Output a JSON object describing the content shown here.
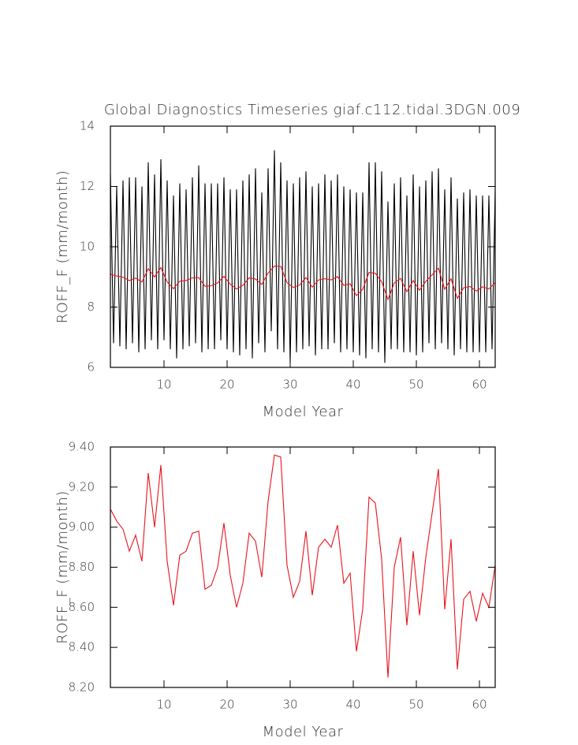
{
  "chart_data": [
    {
      "type": "line",
      "title": "Global Diagnostics Timeseries giaf.c112.tidal.3DGN.009",
      "xlabel": "Model Year",
      "ylabel": "ROFF_F (mm/month)",
      "xlim": [
        1.5,
        62.5
      ],
      "ylim": [
        6,
        14
      ],
      "xticks": [
        10,
        20,
        30,
        40,
        50,
        60
      ],
      "yticks": [
        6,
        8,
        10,
        12,
        14
      ],
      "series": [
        {
          "color": "#000000",
          "x": [
            1.5,
            2,
            2.5,
            3,
            3.5,
            4,
            4.5,
            5,
            5.5,
            6,
            6.5,
            7,
            7.5,
            8,
            8.5,
            9,
            9.5,
            10,
            10.5,
            11,
            11.5,
            12,
            12.5,
            13,
            13.5,
            14,
            14.5,
            15,
            15.5,
            16,
            16.5,
            17,
            17.5,
            18,
            18.5,
            19,
            19.5,
            20,
            20.5,
            21,
            21.5,
            22,
            22.5,
            23,
            23.5,
            24,
            24.5,
            25,
            25.5,
            26,
            26.5,
            27,
            27.5,
            28,
            28.5,
            29,
            29.5,
            30,
            30.5,
            31,
            31.5,
            32,
            32.5,
            33,
            33.5,
            34,
            34.5,
            35,
            35.5,
            36,
            36.5,
            37,
            37.5,
            38,
            38.5,
            39,
            39.5,
            40,
            40.5,
            41,
            41.5,
            42,
            42.5,
            43,
            43.5,
            44,
            44.5,
            45,
            45.5,
            46,
            46.5,
            47,
            47.5,
            48,
            48.5,
            49,
            49.5,
            50,
            50.5,
            51,
            51.5,
            52,
            52.5,
            53,
            53.5,
            54,
            54.5,
            55,
            55.5,
            56,
            56.5,
            57,
            57.5,
            58,
            58.5,
            59,
            59.5,
            60,
            60.5,
            61,
            61.5,
            62,
            62.5
          ],
          "values": [
            12.4,
            6.8,
            12.0,
            6.7,
            12.2,
            6.6,
            12.3,
            6.8,
            12.3,
            6.5,
            12.0,
            6.6,
            12.8,
            6.9,
            12.4,
            6.6,
            12.9,
            6.9,
            12.2,
            6.6,
            11.7,
            6.3,
            12.1,
            6.6,
            11.9,
            6.7,
            12.3,
            6.8,
            12.7,
            6.5,
            12.1,
            6.6,
            12.1,
            6.6,
            12.1,
            6.9,
            12.3,
            6.6,
            11.9,
            6.5,
            11.9,
            6.4,
            12.2,
            6.6,
            12.4,
            6.3,
            12.6,
            6.8,
            11.8,
            6.5,
            12.6,
            7.2,
            13.2,
            6.6,
            12.8,
            6.5,
            12.2,
            6.15,
            12.1,
            6.5,
            12.3,
            6.6,
            12.5,
            6.7,
            12.0,
            6.4,
            12.1,
            6.6,
            12.4,
            6.6,
            12.2,
            6.8,
            12.4,
            6.5,
            12.0,
            6.6,
            11.9,
            6.5,
            11.8,
            6.4,
            11.8,
            6.3,
            12.8,
            6.6,
            12.8,
            6.5,
            12.5,
            6.15,
            11.5,
            6.6,
            12.1,
            6.6,
            12.3,
            6.5,
            11.7,
            6.5,
            12.4,
            6.4,
            12.0,
            6.5,
            12.2,
            6.8,
            12.5,
            6.6,
            12.6,
            6.8,
            11.9,
            6.6,
            12.3,
            6.4,
            11.6,
            6.6,
            11.8,
            6.5,
            11.9,
            6.5,
            11.7,
            6.5,
            11.7,
            6.5,
            11.7,
            6.6,
            11.9
          ]
        },
        {
          "color": "#e8141c",
          "x": [
            1.5,
            2.5,
            3.5,
            4.5,
            5.5,
            6.5,
            7.5,
            8.5,
            9.5,
            10.5,
            11.5,
            12.5,
            13.5,
            14.5,
            15.5,
            16.5,
            17.5,
            18.5,
            19.5,
            20.5,
            21.5,
            22.5,
            23.5,
            24.5,
            25.5,
            26.5,
            27.5,
            28.5,
            29.5,
            30.5,
            31.5,
            32.5,
            33.5,
            34.5,
            35.5,
            36.5,
            37.5,
            38.5,
            39.5,
            40.5,
            41.5,
            42.5,
            43.5,
            44.5,
            45.5,
            46.5,
            47.5,
            48.5,
            49.5,
            50.5,
            51.5,
            52.5,
            53.5,
            54.5,
            55.5,
            56.5,
            57.5,
            58.5,
            59.5,
            60.5,
            61.5,
            62.5
          ],
          "values": [
            9.09,
            9.03,
            8.99,
            8.88,
            8.96,
            8.83,
            9.27,
            9.0,
            9.31,
            8.83,
            8.61,
            8.86,
            8.88,
            8.97,
            8.98,
            8.69,
            8.71,
            8.8,
            9.02,
            8.76,
            8.6,
            8.72,
            8.97,
            8.93,
            8.75,
            9.13,
            9.36,
            9.35,
            8.81,
            8.65,
            8.73,
            8.98,
            8.66,
            8.9,
            8.94,
            8.9,
            9.01,
            8.72,
            8.77,
            8.38,
            8.59,
            9.15,
            9.12,
            8.84,
            8.25,
            8.8,
            8.95,
            8.51,
            8.88,
            8.56,
            8.85,
            9.07,
            9.29,
            8.59,
            8.94,
            8.29,
            8.64,
            8.68,
            8.53,
            8.67,
            8.6,
            8.81
          ]
        }
      ]
    },
    {
      "type": "line",
      "xlabel": "Model Year",
      "ylabel": "ROFF_F (mm/month)",
      "xlim": [
        1.5,
        62.5
      ],
      "ylim": [
        8.2,
        9.4
      ],
      "xticks": [
        10,
        20,
        30,
        40,
        50,
        60
      ],
      "yticks": [
        {
          "value": 8.2,
          "label": "8.20"
        },
        {
          "value": 8.4,
          "label": "8.40"
        },
        {
          "value": 8.6,
          "label": "8.60"
        },
        {
          "value": 8.8,
          "label": "8.80"
        },
        {
          "value": 9.0,
          "label": "9.00"
        },
        {
          "value": 9.2,
          "label": "9.20"
        },
        {
          "value": 9.4,
          "label": "9.40"
        }
      ],
      "series": [
        {
          "color": "#e8141c",
          "x": [
            1.5,
            2.5,
            3.5,
            4.5,
            5.5,
            6.5,
            7.5,
            8.5,
            9.5,
            10.5,
            11.5,
            12.5,
            13.5,
            14.5,
            15.5,
            16.5,
            17.5,
            18.5,
            19.5,
            20.5,
            21.5,
            22.5,
            23.5,
            24.5,
            25.5,
            26.5,
            27.5,
            28.5,
            29.5,
            30.5,
            31.5,
            32.5,
            33.5,
            34.5,
            35.5,
            36.5,
            37.5,
            38.5,
            39.5,
            40.5,
            41.5,
            42.5,
            43.5,
            44.5,
            45.5,
            46.5,
            47.5,
            48.5,
            49.5,
            50.5,
            51.5,
            52.5,
            53.5,
            54.5,
            55.5,
            56.5,
            57.5,
            58.5,
            59.5,
            60.5,
            61.5,
            62.5
          ],
          "values": [
            9.09,
            9.03,
            8.99,
            8.88,
            8.96,
            8.83,
            9.27,
            9.0,
            9.31,
            8.83,
            8.61,
            8.86,
            8.88,
            8.97,
            8.98,
            8.69,
            8.71,
            8.8,
            9.02,
            8.76,
            8.6,
            8.72,
            8.97,
            8.93,
            8.75,
            9.13,
            9.36,
            9.35,
            8.81,
            8.65,
            8.73,
            8.98,
            8.66,
            8.9,
            8.94,
            8.9,
            9.01,
            8.72,
            8.77,
            8.38,
            8.59,
            9.15,
            9.12,
            8.84,
            8.25,
            8.8,
            8.95,
            8.51,
            8.88,
            8.56,
            8.85,
            9.07,
            9.29,
            8.59,
            8.94,
            8.29,
            8.64,
            8.68,
            8.53,
            8.67,
            8.6,
            8.81
          ]
        }
      ]
    }
  ]
}
